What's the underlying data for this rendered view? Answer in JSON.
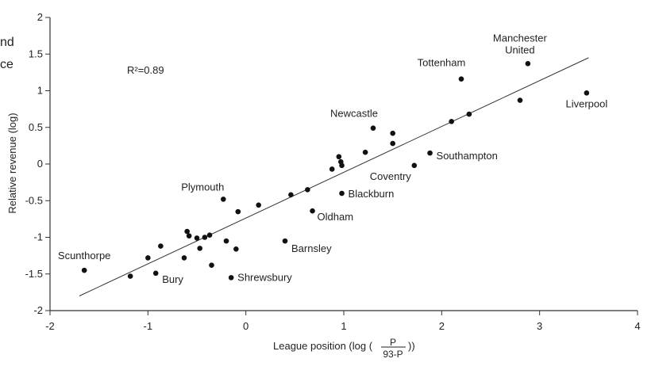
{
  "chart_data": {
    "type": "scatter",
    "title": "",
    "xlabel": "League position (log (",
    "xlabel_fraction": {
      "numerator": "P",
      "denominator": "93-P"
    },
    "xlabel_close": "))",
    "ylabel": "Relative revenue (log)",
    "xlim": [
      -2,
      4
    ],
    "ylim": [
      -2,
      2
    ],
    "x_ticks": [
      -2,
      -1,
      0,
      1,
      2,
      3,
      4
    ],
    "y_ticks": [
      -2,
      -1.5,
      -1,
      -0.5,
      0,
      0.5,
      1,
      1.5,
      2
    ],
    "annotation": "R²=0.89",
    "grid": false,
    "cut_text": [
      "nd",
      "ce"
    ],
    "regression_line": {
      "x": [
        -1.7,
        3.5
      ],
      "y": [
        -1.8,
        1.45
      ]
    },
    "points": [
      {
        "x": -1.65,
        "y": -1.45,
        "label": "Scunthorpe"
      },
      {
        "x": -1.18,
        "y": -1.53
      },
      {
        "x": -1.0,
        "y": -1.28
      },
      {
        "x": -0.92,
        "y": -1.49,
        "label": "Bury"
      },
      {
        "x": -0.87,
        "y": -1.12
      },
      {
        "x": -0.63,
        "y": -1.28
      },
      {
        "x": -0.6,
        "y": -0.92
      },
      {
        "x": -0.58,
        "y": -0.98
      },
      {
        "x": -0.5,
        "y": -1.01
      },
      {
        "x": -0.47,
        "y": -1.15
      },
      {
        "x": -0.42,
        "y": -1.0
      },
      {
        "x": -0.37,
        "y": -0.97
      },
      {
        "x": -0.35,
        "y": -1.38
      },
      {
        "x": -0.23,
        "y": -0.48,
        "label": "Plymouth"
      },
      {
        "x": -0.2,
        "y": -1.05
      },
      {
        "x": -0.15,
        "y": -1.55,
        "label": "Shrewsbury"
      },
      {
        "x": -0.1,
        "y": -1.16
      },
      {
        "x": -0.08,
        "y": -0.65
      },
      {
        "x": 0.13,
        "y": -0.56
      },
      {
        "x": 0.4,
        "y": -1.05,
        "label": "Barnsley"
      },
      {
        "x": 0.46,
        "y": -0.42
      },
      {
        "x": 0.63,
        "y": -0.35
      },
      {
        "x": 0.68,
        "y": -0.64,
        "label": "Oldham"
      },
      {
        "x": 0.88,
        "y": -0.07
      },
      {
        "x": 0.95,
        "y": 0.1
      },
      {
        "x": 0.97,
        "y": 0.03
      },
      {
        "x": 0.98,
        "y": -0.02
      },
      {
        "x": 0.98,
        "y": -0.4,
        "label": "Blackburn"
      },
      {
        "x": 1.22,
        "y": 0.16
      },
      {
        "x": 1.3,
        "y": 0.49,
        "label": "Newcastle"
      },
      {
        "x": 1.5,
        "y": 0.42
      },
      {
        "x": 1.5,
        "y": 0.28
      },
      {
        "x": 1.72,
        "y": -0.02,
        "label": "Coventry"
      },
      {
        "x": 1.88,
        "y": 0.15,
        "label": "Southampton"
      },
      {
        "x": 2.1,
        "y": 0.58
      },
      {
        "x": 2.2,
        "y": 1.16,
        "label": "Tottenham"
      },
      {
        "x": 2.28,
        "y": 0.68
      },
      {
        "x": 2.8,
        "y": 0.87
      },
      {
        "x": 2.88,
        "y": 1.37,
        "label": "Manchester\nUnited"
      },
      {
        "x": 3.48,
        "y": 0.97,
        "label": "Liverpool"
      }
    ]
  }
}
